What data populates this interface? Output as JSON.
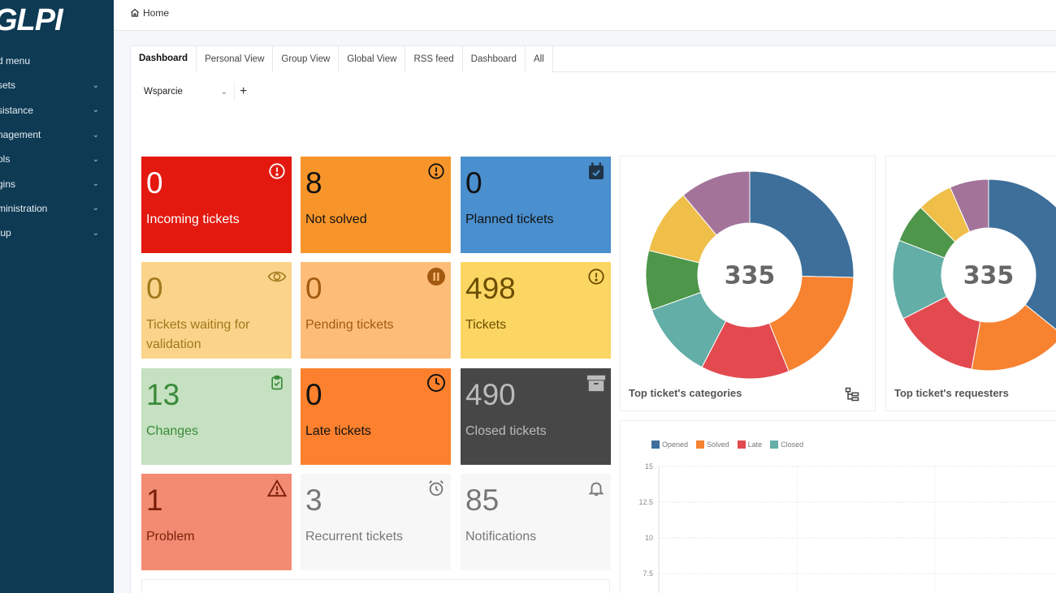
{
  "sidebar": {
    "logo": "GLPI",
    "items": [
      {
        "label": "d menu",
        "chevron": false
      },
      {
        "label": "sets",
        "chevron": true
      },
      {
        "label": "sistance",
        "chevron": true
      },
      {
        "label": "nagement",
        "chevron": true
      },
      {
        "label": "ols",
        "chevron": true
      },
      {
        "label": "gins",
        "chevron": true
      },
      {
        "label": "ministration",
        "chevron": true
      },
      {
        "label": "tup",
        "chevron": true
      }
    ]
  },
  "header": {
    "breadcrumb": "Home"
  },
  "tabs": [
    "Dashboard",
    "Personal View",
    "Group View",
    "Global View",
    "RSS feed",
    "Dashboard",
    "All"
  ],
  "dashboard_selector": {
    "value": "Wsparcie",
    "add": "+"
  },
  "tiles": [
    {
      "value": "0",
      "label": "Incoming tickets",
      "bg": "#e3190f",
      "fg": "#ffffff",
      "icon": "alert-circle-icon",
      "icon_color": "#ffffff"
    },
    {
      "value": "8",
      "label": "Not solved",
      "bg": "#f8952a",
      "fg": "#111111",
      "icon": "alert-circle-icon",
      "icon_color": "#111111"
    },
    {
      "value": "0",
      "label": "Planned tickets",
      "bg": "#4a8fce",
      "fg": "#111111",
      "icon": "calendar-check-icon",
      "icon_color": "#1e3346"
    },
    {
      "value": "0",
      "label": "Tickets waiting for validation",
      "bg": "#fad48a",
      "fg": "#a2781c",
      "icon": "eye-icon",
      "icon_color": "#a2781c"
    },
    {
      "value": "0",
      "label": "Pending tickets",
      "bg": "#fdbd78",
      "fg": "#a35a10",
      "icon": "pause-circle-icon",
      "icon_color": "#a35a10"
    },
    {
      "value": "498",
      "label": "Tickets",
      "bg": "#fcd662",
      "fg": "#6b4e00",
      "icon": "alert-circle-icon",
      "icon_color": "#6b4e00"
    },
    {
      "value": "13",
      "label": "Changes",
      "bg": "#c5e1c1",
      "fg": "#3a8a3a",
      "icon": "clipboard-check-icon",
      "icon_color": "#3a8a3a"
    },
    {
      "value": "0",
      "label": "Late tickets",
      "bg": "#fc802d",
      "fg": "#111111",
      "icon": "clock-icon",
      "icon_color": "#111111"
    },
    {
      "value": "490",
      "label": "Closed tickets",
      "bg": "#474747",
      "fg": "#bbbbbb",
      "icon": "archive-icon",
      "icon_color": "#bbbbbb"
    },
    {
      "value": "1",
      "label": "Problem",
      "bg": "#f28b71",
      "fg": "#7a1f0c",
      "icon": "warning-triangle-icon",
      "icon_color": "#7a1f0c"
    },
    {
      "value": "3",
      "label": "Recurrent tickets",
      "bg": "#f7f7f7",
      "fg": "#777777",
      "icon": "alarm-clock-icon",
      "icon_color": "#777777"
    },
    {
      "value": "85",
      "label": "Notifications",
      "bg": "#f7f7f7",
      "fg": "#777777",
      "icon": "bell-icon",
      "icon_color": "#777777"
    }
  ],
  "donut_categories": {
    "title": "Top ticket's categories",
    "total": "335",
    "icon": "hierarchy-icon",
    "slices": [
      {
        "value": 85,
        "color": "#3d6f9a"
      },
      {
        "value": 62,
        "color": "#f78230"
      },
      {
        "value": 46,
        "color": "#e24a50"
      },
      {
        "value": 40,
        "color": "#63aea6"
      },
      {
        "value": 31,
        "color": "#4e9649"
      },
      {
        "value": 34,
        "color": "#efbf4a"
      },
      {
        "value": 37,
        "color": "#a3739a"
      }
    ]
  },
  "donut_requesters": {
    "title": "Top ticket's requesters",
    "total": "335",
    "slices": [
      {
        "value": 120,
        "color": "#3d6f9a"
      },
      {
        "value": 57,
        "color": "#f78230"
      },
      {
        "value": 49,
        "color": "#e24a50"
      },
      {
        "value": 45,
        "color": "#63aea6"
      },
      {
        "value": 22,
        "color": "#4e9649"
      },
      {
        "value": 20,
        "color": "#efbf4a"
      },
      {
        "value": 22,
        "color": "#a3739a"
      }
    ]
  },
  "line_chart": {
    "legend": [
      {
        "name": "Opened",
        "color": "#3d6f9a"
      },
      {
        "name": "Solved",
        "color": "#f78230"
      },
      {
        "name": "Late",
        "color": "#e24a50"
      },
      {
        "name": "Closed",
        "color": "#63aea6"
      }
    ],
    "yticks": [
      "15",
      "12.5",
      "10",
      "7.5"
    ]
  }
}
